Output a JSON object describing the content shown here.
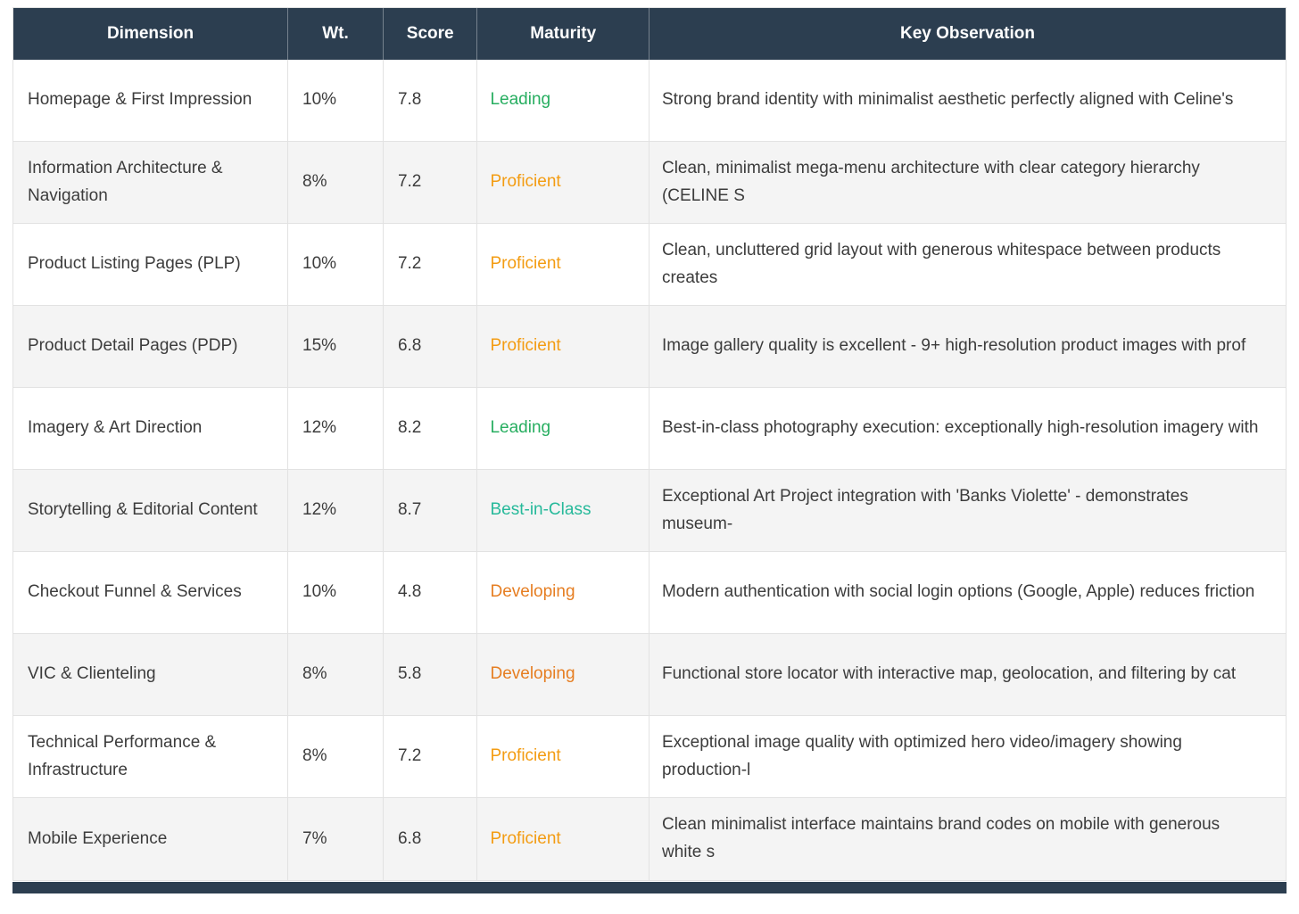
{
  "chart_data": {
    "type": "table",
    "columns": [
      "Dimension",
      "Wt.",
      "Score",
      "Maturity",
      "Key Observation"
    ],
    "rows": [
      {
        "dimension": "Homepage & First Impression",
        "weight": "10%",
        "score": "7.8",
        "maturity": "Leading",
        "maturity_color": "#27ae60",
        "observation": "Strong brand identity with minimalist aesthetic perfectly aligned with Celine's"
      },
      {
        "dimension": "Information Architecture & Navigation",
        "weight": "8%",
        "score": "7.2",
        "maturity": "Proficient",
        "maturity_color": "#f39c12",
        "observation": "Clean, minimalist mega-menu architecture with clear category hierarchy (CELINE S"
      },
      {
        "dimension": "Product Listing Pages (PLP)",
        "weight": "10%",
        "score": "7.2",
        "maturity": "Proficient",
        "maturity_color": "#f39c12",
        "observation": "Clean, uncluttered grid layout with generous whitespace between products creates"
      },
      {
        "dimension": "Product Detail Pages (PDP)",
        "weight": "15%",
        "score": "6.8",
        "maturity": "Proficient",
        "maturity_color": "#f39c12",
        "observation": "Image gallery quality is excellent - 9+ high-resolution product images with prof"
      },
      {
        "dimension": "Imagery & Art Direction",
        "weight": "12%",
        "score": "8.2",
        "maturity": "Leading",
        "maturity_color": "#27ae60",
        "observation": "Best-in-class photography execution: exceptionally high-resolution imagery with"
      },
      {
        "dimension": "Storytelling & Editorial Content",
        "weight": "12%",
        "score": "8.7",
        "maturity": "Best-in-Class",
        "maturity_color": "#26b99a",
        "observation": "Exceptional Art Project integration with 'Banks Violette' - demonstrates museum-"
      },
      {
        "dimension": "Checkout Funnel & Services",
        "weight": "10%",
        "score": "4.8",
        "maturity": "Developing",
        "maturity_color": "#e67e22",
        "observation": "Modern authentication with social login options (Google, Apple) reduces friction"
      },
      {
        "dimension": "VIC & Clienteling",
        "weight": "8%",
        "score": "5.8",
        "maturity": "Developing",
        "maturity_color": "#e67e22",
        "observation": "Functional store locator with interactive map, geolocation, and filtering by cat"
      },
      {
        "dimension": "Technical Performance & Infrastructure",
        "weight": "8%",
        "score": "7.2",
        "maturity": "Proficient",
        "maturity_color": "#f39c12",
        "observation": "Exceptional image quality with optimized hero video/imagery showing production-l"
      },
      {
        "dimension": "Mobile Experience",
        "weight": "7%",
        "score": "6.8",
        "maturity": "Proficient",
        "maturity_color": "#f39c12",
        "observation": "Clean minimalist interface maintains brand codes on mobile with generous white s"
      }
    ],
    "palette": {
      "header_bg": "#2c3e50",
      "leading": "#27ae60",
      "proficient": "#f39c12",
      "developing": "#e67e22",
      "best_in_class": "#26b99a"
    }
  }
}
